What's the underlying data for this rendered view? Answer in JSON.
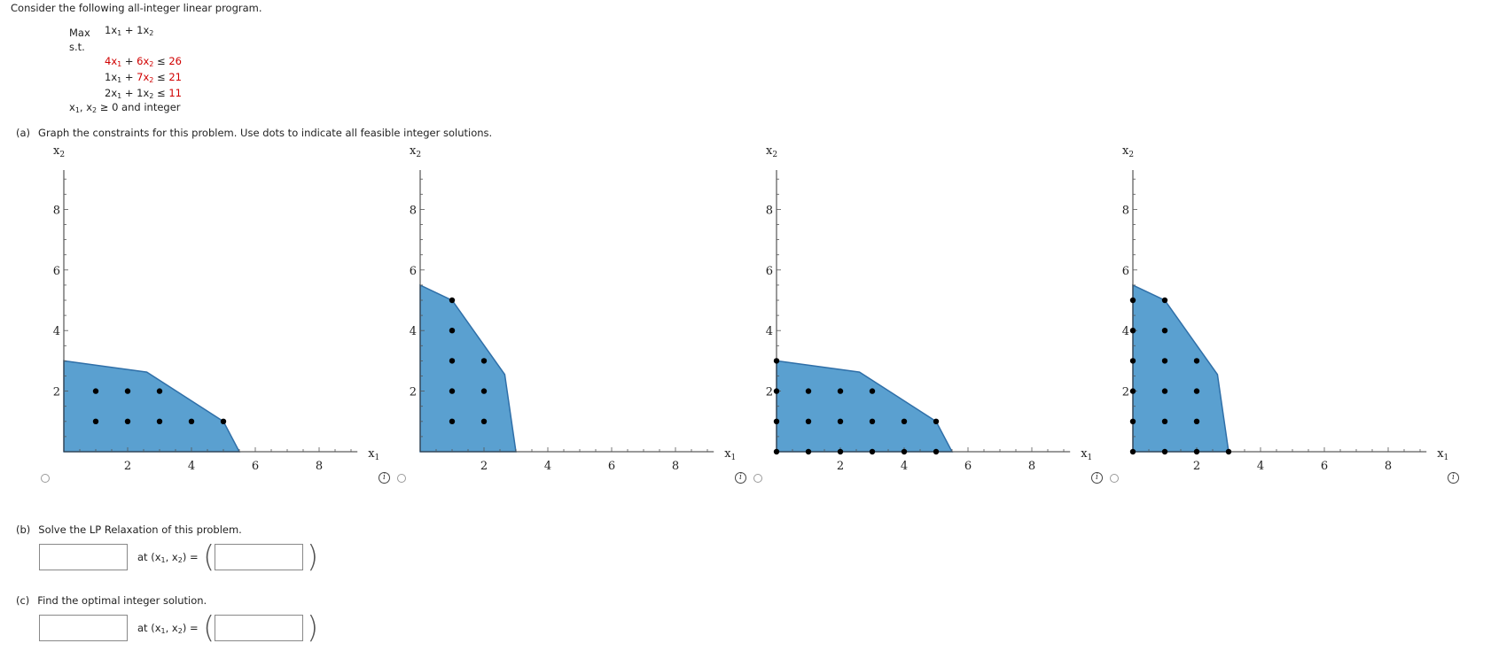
{
  "intro": "Consider the following all-integer linear program.",
  "program": {
    "objective_keyword": "Max",
    "objective": [
      {
        "coef": "1",
        "var": "x",
        "sub": "1"
      },
      {
        "coef": "1",
        "var": "x",
        "sub": "2"
      }
    ],
    "st": "s.t.",
    "constraints": [
      {
        "a1": "4",
        "a2": "6",
        "rel": "≤",
        "rhs": "26",
        "a1_red": true,
        "a2_red": true
      },
      {
        "a1": "1",
        "a2": "7",
        "rel": "≤",
        "rhs": "21",
        "a1_red": false,
        "a2_red": true
      },
      {
        "a1": "2",
        "a2": "1",
        "rel": "≤",
        "rhs": "11",
        "a1_red": false,
        "a2_red": false
      }
    ],
    "nonneg_suffix": "≥ 0 and integer"
  },
  "part_a": {
    "label": "(a)",
    "text": "Graph the constraints for this problem. Use dots to indicate all feasible integer solutions."
  },
  "part_b": {
    "label": "(b)",
    "text": "Solve the LP Relaxation of this problem.",
    "at_text": "at (x",
    "eq": ") ="
  },
  "part_c": {
    "label": "(c)",
    "text": "Find the optimal integer solution.",
    "at_text": "at (x",
    "eq": ") ="
  },
  "colors": {
    "region_fill": "#5aa0d0",
    "region_stroke": "#2f6fa8",
    "accent_red": "#d00000"
  },
  "chart_data": [
    {
      "type": "scatter",
      "xlabel": "x1",
      "ylabel": "x2",
      "xlim": [
        0,
        9.2
      ],
      "ylim": [
        0,
        9.3
      ],
      "x_ticks": [
        2,
        4,
        6,
        8
      ],
      "y_ticks": [
        2,
        4,
        6,
        8
      ],
      "region": [
        [
          0,
          0
        ],
        [
          0,
          3
        ],
        [
          2.6,
          2.63
        ],
        [
          5,
          1
        ],
        [
          5.5,
          0
        ]
      ],
      "points": [
        [
          1,
          1
        ],
        [
          2,
          1
        ],
        [
          3,
          1
        ],
        [
          4,
          1
        ],
        [
          5,
          1
        ],
        [
          1,
          2
        ],
        [
          2,
          2
        ],
        [
          3,
          2
        ]
      ]
    },
    {
      "type": "scatter",
      "xlabel": "x1",
      "ylabel": "x2",
      "xlim": [
        0,
        9.2
      ],
      "ylim": [
        0,
        9.3
      ],
      "x_ticks": [
        2,
        4,
        6,
        8
      ],
      "y_ticks": [
        2,
        4,
        6,
        8
      ],
      "region": [
        [
          0,
          0
        ],
        [
          0,
          5.5
        ],
        [
          1,
          5
        ],
        [
          2.65,
          2.55
        ],
        [
          3,
          0
        ]
      ],
      "points": [
        [
          1,
          1
        ],
        [
          2,
          1
        ],
        [
          1,
          2
        ],
        [
          2,
          2
        ],
        [
          1,
          3
        ],
        [
          2,
          3
        ],
        [
          1,
          4
        ],
        [
          1,
          5
        ]
      ]
    },
    {
      "type": "scatter",
      "xlabel": "x1",
      "ylabel": "x2",
      "xlim": [
        0,
        9.2
      ],
      "ylim": [
        0,
        9.3
      ],
      "x_ticks": [
        2,
        4,
        6,
        8
      ],
      "y_ticks": [
        2,
        4,
        6,
        8
      ],
      "region": [
        [
          0,
          0
        ],
        [
          0,
          3
        ],
        [
          2.6,
          2.63
        ],
        [
          5,
          1
        ],
        [
          5.5,
          0
        ]
      ],
      "points": [
        [
          0,
          0
        ],
        [
          1,
          0
        ],
        [
          2,
          0
        ],
        [
          3,
          0
        ],
        [
          4,
          0
        ],
        [
          5,
          0
        ],
        [
          0,
          1
        ],
        [
          1,
          1
        ],
        [
          2,
          1
        ],
        [
          3,
          1
        ],
        [
          4,
          1
        ],
        [
          5,
          1
        ],
        [
          0,
          2
        ],
        [
          1,
          2
        ],
        [
          2,
          2
        ],
        [
          3,
          2
        ],
        [
          0,
          3
        ]
      ]
    },
    {
      "type": "scatter",
      "xlabel": "x1",
      "ylabel": "x2",
      "xlim": [
        0,
        9.2
      ],
      "ylim": [
        0,
        9.3
      ],
      "x_ticks": [
        2,
        4,
        6,
        8
      ],
      "y_ticks": [
        2,
        4,
        6,
        8
      ],
      "region": [
        [
          0,
          0
        ],
        [
          0,
          5.5
        ],
        [
          1,
          5
        ],
        [
          2.65,
          2.55
        ],
        [
          3,
          0
        ]
      ],
      "points": [
        [
          0,
          0
        ],
        [
          1,
          0
        ],
        [
          2,
          0
        ],
        [
          3,
          0
        ],
        [
          0,
          1
        ],
        [
          1,
          1
        ],
        [
          2,
          1
        ],
        [
          0,
          2
        ],
        [
          1,
          2
        ],
        [
          2,
          2
        ],
        [
          0,
          3
        ],
        [
          1,
          3
        ],
        [
          2,
          3
        ],
        [
          0,
          4
        ],
        [
          1,
          4
        ],
        [
          0,
          5
        ],
        [
          1,
          5
        ]
      ]
    }
  ]
}
